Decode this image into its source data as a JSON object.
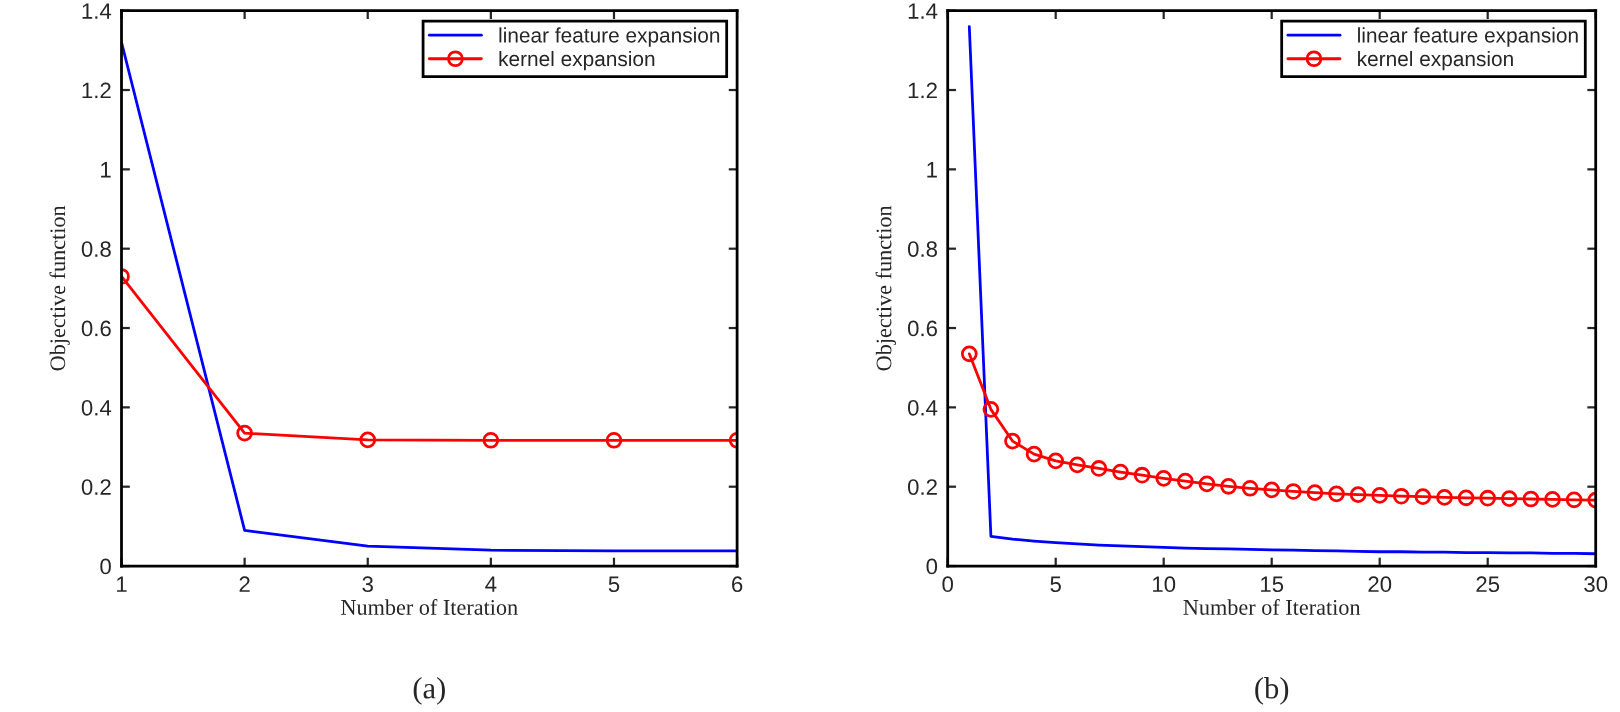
{
  "chart_data": [
    {
      "type": "line",
      "xlabel": "Number of Iteration",
      "ylabel": "Objective function",
      "annotations": [
        "(a)"
      ],
      "x": [
        1,
        2,
        3,
        4,
        5,
        6
      ],
      "xlim": [
        1,
        6
      ],
      "xticks": [
        1,
        2,
        3,
        4,
        5,
        6
      ],
      "ylim": [
        0,
        1.4
      ],
      "yticks": [
        0,
        0.2,
        0.4,
        0.6,
        0.8,
        1,
        1.2,
        1.4
      ],
      "grid": false,
      "legend": "top right",
      "series": [
        {
          "name": "linear feature expansion",
          "color": "#0000ff",
          "marker": "none",
          "values": [
            1.32,
            0.09,
            0.05,
            0.04,
            0.038,
            0.038
          ]
        },
        {
          "name": "kernel expansion",
          "color": "#ff0000",
          "marker": "circle",
          "values": [
            0.73,
            0.335,
            0.318,
            0.317,
            0.317,
            0.317
          ]
        }
      ]
    },
    {
      "type": "line",
      "xlabel": "Number of Iteration",
      "ylabel": "Objective function",
      "annotations": [
        "(b)"
      ],
      "x": [
        1,
        2,
        3,
        4,
        5,
        6,
        7,
        8,
        9,
        10,
        11,
        12,
        13,
        14,
        15,
        16,
        17,
        18,
        19,
        20,
        21,
        22,
        23,
        24,
        25,
        26,
        27,
        28,
        29,
        30
      ],
      "xlim": [
        0,
        30
      ],
      "xticks": [
        0,
        5,
        10,
        15,
        20,
        25,
        30
      ],
      "ylim": [
        0,
        1.4
      ],
      "yticks": [
        0,
        0.2,
        0.4,
        0.6,
        0.8,
        1,
        1.2,
        1.4
      ],
      "grid": false,
      "legend": "top right",
      "series": [
        {
          "name": "linear feature expansion",
          "color": "#0000ff",
          "marker": "none",
          "values": [
            1.36,
            0.075,
            0.068,
            0.063,
            0.059,
            0.056,
            0.053,
            0.051,
            0.049,
            0.047,
            0.045,
            0.044,
            0.043,
            0.042,
            0.041,
            0.04,
            0.039,
            0.038,
            0.037,
            0.036,
            0.036,
            0.035,
            0.035,
            0.034,
            0.034,
            0.033,
            0.033,
            0.032,
            0.032,
            0.031
          ]
        },
        {
          "name": "kernel expansion",
          "color": "#ff0000",
          "marker": "circle",
          "values": [
            0.535,
            0.395,
            0.315,
            0.282,
            0.265,
            0.255,
            0.246,
            0.237,
            0.229,
            0.221,
            0.214,
            0.207,
            0.201,
            0.196,
            0.192,
            0.188,
            0.185,
            0.182,
            0.18,
            0.178,
            0.176,
            0.175,
            0.173,
            0.172,
            0.171,
            0.17,
            0.169,
            0.168,
            0.167,
            0.166
          ]
        }
      ]
    }
  ]
}
